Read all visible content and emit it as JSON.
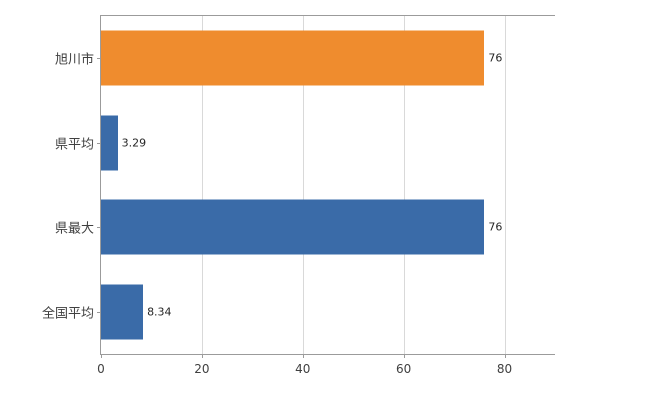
{
  "chart_data": {
    "type": "bar",
    "orientation": "horizontal",
    "title": "",
    "xlabel": "",
    "ylabel": "",
    "categories": [
      "旭川市",
      "県平均",
      "県最大",
      "全国平均"
    ],
    "values": [
      76,
      3.29,
      76,
      8.34
    ],
    "value_labels": [
      "76",
      "3.29",
      "76",
      "8.34"
    ],
    "bar_colors": [
      "#EF8C2E",
      "#3A6BA8",
      "#3A6BA8",
      "#3A6BA8"
    ],
    "xlim": [
      0,
      90
    ],
    "xticks": [
      0,
      20,
      40,
      60,
      80
    ],
    "xtick_labels": [
      "0",
      "20",
      "40",
      "60",
      "80"
    ],
    "grid": "vertical",
    "legend": "none"
  },
  "colors": {
    "grid": "#d9d9d9",
    "axis": "#9b9b9b",
    "label_text": "#404040",
    "value_text": "#262626",
    "background": "#ffffff"
  }
}
